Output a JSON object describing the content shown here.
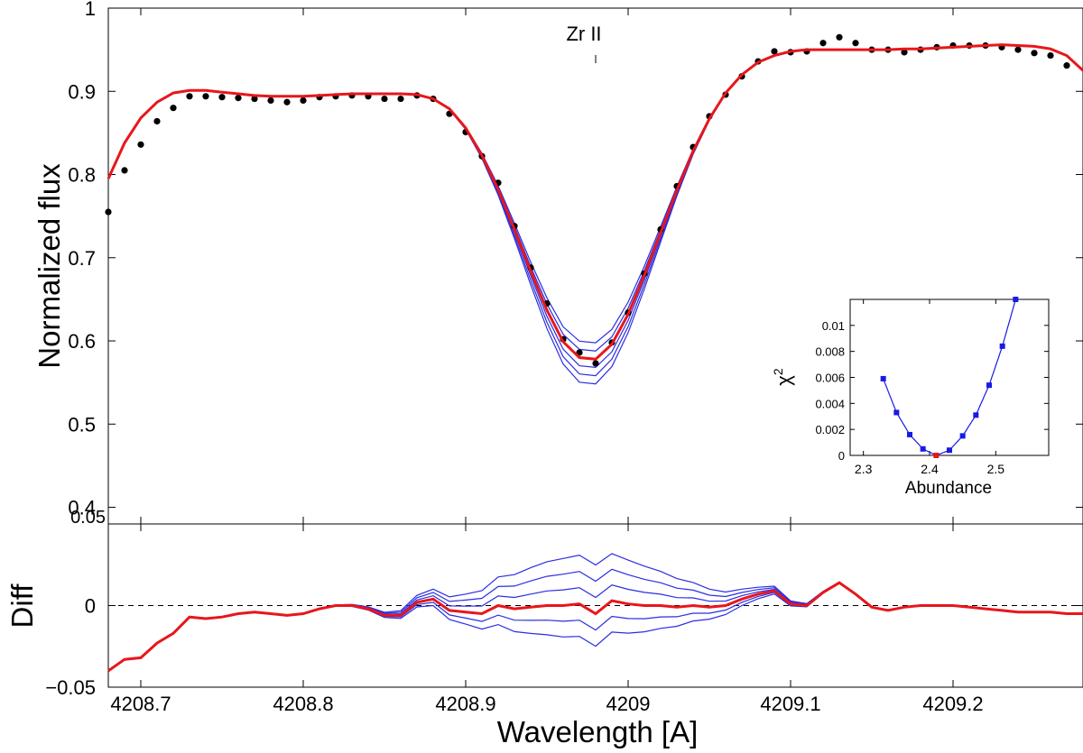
{
  "chart_data": [
    {
      "type": "line",
      "panel": "main",
      "title": "",
      "xlabel": "",
      "ylabel": "Normalized flux",
      "xlim": [
        4208.68,
        4209.28
      ],
      "ylim": [
        0.38,
        1.0
      ],
      "xticks": [
        4208.7,
        4208.8,
        4208.9,
        4209.0,
        4209.1,
        4209.2
      ],
      "yticks": [
        0.4,
        0.5,
        0.6,
        0.7,
        0.8,
        0.9,
        1
      ],
      "ytick_labels": [
        "0.4",
        "0.5",
        "0.6",
        "0.7",
        "0.8",
        "0.9",
        "1"
      ],
      "extra_label": "0.05",
      "annotation": {
        "text": "Zr II",
        "x": 4208.98
      },
      "observed_points": {
        "x": [
          4208.68,
          4208.69,
          4208.7,
          4208.71,
          4208.72,
          4208.73,
          4208.74,
          4208.75,
          4208.76,
          4208.77,
          4208.78,
          4208.79,
          4208.8,
          4208.81,
          4208.82,
          4208.83,
          4208.84,
          4208.85,
          4208.86,
          4208.87,
          4208.88,
          4208.89,
          4208.9,
          4208.91,
          4208.92,
          4208.93,
          4208.94,
          4208.95,
          4208.96,
          4208.97,
          4208.98,
          4208.99,
          4209.0,
          4209.01,
          4209.02,
          4209.03,
          4209.04,
          4209.05,
          4209.06,
          4209.07,
          4209.08,
          4209.09,
          4209.1,
          4209.11,
          4209.12,
          4209.13,
          4209.14,
          4209.15,
          4209.16,
          4209.17,
          4209.18,
          4209.19,
          4209.2,
          4209.21,
          4209.22,
          4209.23,
          4209.24,
          4209.25,
          4209.26,
          4209.27
        ],
        "y": [
          0.755,
          0.805,
          0.836,
          0.864,
          0.88,
          0.894,
          0.894,
          0.893,
          0.892,
          0.891,
          0.889,
          0.887,
          0.889,
          0.893,
          0.894,
          0.895,
          0.894,
          0.891,
          0.891,
          0.895,
          0.891,
          0.873,
          0.851,
          0.822,
          0.79,
          0.738,
          0.688,
          0.645,
          0.602,
          0.586,
          0.573,
          0.598,
          0.634,
          0.681,
          0.734,
          0.786,
          0.833,
          0.87,
          0.896,
          0.918,
          0.936,
          0.948,
          0.947,
          0.948,
          0.958,
          0.965,
          0.958,
          0.95,
          0.95,
          0.947,
          0.95,
          0.953,
          0.955,
          0.955,
          0.955,
          0.953,
          0.95,
          0.946,
          0.943,
          0.931
        ]
      },
      "series": [
        {
          "name": "best fit",
          "color": "#e8161b",
          "x": [
            4208.68,
            4208.69,
            4208.7,
            4208.71,
            4208.72,
            4208.73,
            4208.74,
            4208.75,
            4208.76,
            4208.77,
            4208.78,
            4208.79,
            4208.8,
            4208.81,
            4208.82,
            4208.83,
            4208.84,
            4208.85,
            4208.86,
            4208.87,
            4208.88,
            4208.89,
            4208.9,
            4208.91,
            4208.92,
            4208.93,
            4208.94,
            4208.95,
            4208.96,
            4208.97,
            4208.98,
            4208.99,
            4209.0,
            4209.01,
            4209.02,
            4209.03,
            4209.04,
            4209.05,
            4209.06,
            4209.07,
            4209.08,
            4209.09,
            4209.1,
            4209.11,
            4209.12,
            4209.13,
            4209.14,
            4209.15,
            4209.16,
            4209.17,
            4209.18,
            4209.19,
            4209.2,
            4209.21,
            4209.22,
            4209.23,
            4209.24,
            4209.25,
            4209.26,
            4209.27,
            4209.28
          ],
          "y": [
            0.795,
            0.838,
            0.868,
            0.887,
            0.898,
            0.901,
            0.901,
            0.899,
            0.897,
            0.895,
            0.894,
            0.894,
            0.894,
            0.895,
            0.896,
            0.897,
            0.897,
            0.897,
            0.897,
            0.896,
            0.891,
            0.879,
            0.856,
            0.823,
            0.782,
            0.734,
            0.684,
            0.637,
            0.599,
            0.58,
            0.578,
            0.596,
            0.632,
            0.679,
            0.73,
            0.781,
            0.828,
            0.867,
            0.898,
            0.92,
            0.935,
            0.943,
            0.948,
            0.95,
            0.95,
            0.95,
            0.95,
            0.95,
            0.95,
            0.951,
            0.951,
            0.952,
            0.953,
            0.954,
            0.955,
            0.956,
            0.955,
            0.954,
            0.951,
            0.943,
            0.925
          ]
        },
        {
          "name": "abundance variants",
          "color": "#2a2ee0",
          "offsets_at_core": [
            0.02,
            0.01,
            -0.01,
            -0.02,
            -0.03
          ],
          "note": "five thin lines that diverge from the best fit only near the line core"
        }
      ]
    },
    {
      "type": "line",
      "panel": "residuals",
      "xlabel": "Wavelength [A]",
      "ylabel": "Diff",
      "xlim": [
        4208.68,
        4209.28
      ],
      "ylim": [
        -0.05,
        0.05
      ],
      "xticks": [
        4208.7,
        4208.8,
        4208.9,
        4209.0,
        4209.1,
        4209.2
      ],
      "xtick_labels": [
        "4208.7",
        "4208.8",
        "4208.9",
        "4209",
        "4209.1",
        "4209.2"
      ],
      "yticks": [
        -0.05,
        0,
        0.05
      ],
      "ytick_labels": [
        "−0.05",
        "0",
        "0.05"
      ],
      "zero_line": "dashed",
      "series": [
        {
          "name": "residual (best fit)",
          "color": "#e8161b",
          "x": [
            4208.68,
            4208.69,
            4208.7,
            4208.71,
            4208.72,
            4208.73,
            4208.74,
            4208.75,
            4208.76,
            4208.77,
            4208.78,
            4208.79,
            4208.8,
            4208.81,
            4208.82,
            4208.83,
            4208.84,
            4208.85,
            4208.86,
            4208.87,
            4208.88,
            4208.89,
            4208.9,
            4208.91,
            4208.92,
            4208.93,
            4208.94,
            4208.95,
            4208.96,
            4208.97,
            4208.98,
            4208.99,
            4209.0,
            4209.01,
            4209.02,
            4209.03,
            4209.04,
            4209.05,
            4209.06,
            4209.07,
            4209.08,
            4209.09,
            4209.1,
            4209.11,
            4209.12,
            4209.13,
            4209.14,
            4209.15,
            4209.16,
            4209.17,
            4209.18,
            4209.19,
            4209.2,
            4209.21,
            4209.22,
            4209.23,
            4209.24,
            4209.25,
            4209.26,
            4209.27,
            4209.28
          ],
          "y": [
            -0.04,
            -0.033,
            -0.032,
            -0.023,
            -0.017,
            -0.007,
            -0.008,
            -0.007,
            -0.005,
            -0.004,
            -0.005,
            -0.006,
            -0.005,
            -0.002,
            0.0,
            0.0,
            -0.002,
            -0.006,
            -0.006,
            0.002,
            0.004,
            -0.003,
            -0.004,
            -0.005,
            0.0,
            -0.002,
            -0.001,
            0.0,
            0.0,
            0.001,
            -0.005,
            0.003,
            0.001,
            0.0,
            0.0,
            -0.001,
            0.0,
            -0.001,
            0.0,
            0.004,
            0.007,
            0.009,
            0.001,
            0.0,
            0.008,
            0.014,
            0.007,
            -0.001,
            -0.003,
            -0.001,
            0.0,
            0.0,
            0.0,
            -0.001,
            -0.002,
            -0.003,
            -0.004,
            -0.004,
            -0.004,
            -0.005,
            -0.005
          ]
        }
      ],
      "variant_residual_offsets": [
        0.03,
        0.02,
        0.01,
        -0.01,
        -0.02
      ]
    },
    {
      "type": "line",
      "panel": "inset",
      "xlabel": "Abundance",
      "ylabel": "χ",
      "ylabel_superscript": "2",
      "xlim": [
        2.28,
        2.58
      ],
      "ylim": [
        0,
        0.012
      ],
      "xticks": [
        2.3,
        2.4,
        2.5
      ],
      "xtick_labels": [
        "2.3",
        "2.4",
        "2.5"
      ],
      "yticks": [
        0,
        0.002,
        0.004,
        0.006,
        0.008,
        0.01
      ],
      "ytick_labels": [
        "0",
        "0.002",
        "0.004",
        "0.006",
        "0.008",
        "0.01"
      ],
      "series": [
        {
          "name": "chi2",
          "color": "#1a1ae6",
          "marker": "square",
          "x": [
            2.33,
            2.35,
            2.37,
            2.39,
            2.41,
            2.43,
            2.45,
            2.47,
            2.49,
            2.51,
            2.53
          ],
          "y": [
            0.0059,
            0.0033,
            0.0016,
            0.0005,
            0.0,
            0.0004,
            0.0015,
            0.0031,
            0.0054,
            0.0084,
            0.012
          ]
        }
      ],
      "minimum": {
        "x": 2.41,
        "y": 0.0,
        "color": "#e81616"
      }
    }
  ]
}
